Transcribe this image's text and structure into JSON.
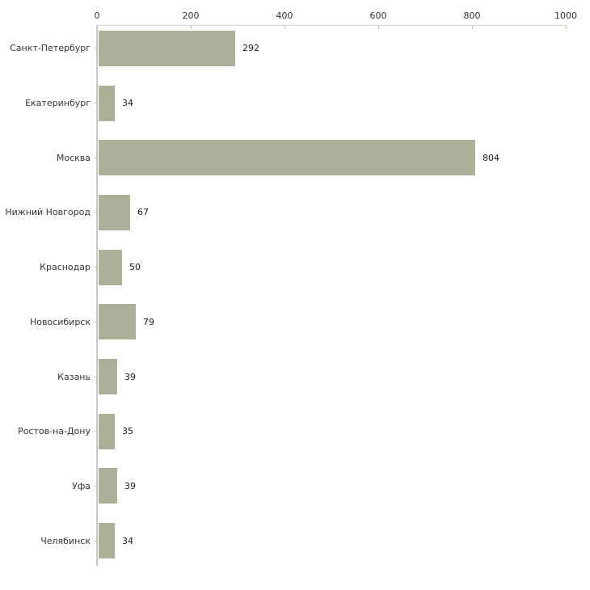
{
  "chart_data": {
    "type": "bar",
    "orientation": "horizontal",
    "title": "",
    "xlabel": "",
    "ylabel": "",
    "categories": [
      "Санкт-Петербург",
      "Екатеринбург",
      "Москва",
      "Нижний Новгород",
      "Краснодар",
      "Новосибирск",
      "Казань",
      "Ростов-на-Дону",
      "Уфа",
      "Челябинск"
    ],
    "values": [
      292,
      34,
      804,
      67,
      50,
      79,
      39,
      35,
      39,
      34
    ],
    "xlim": [
      0,
      1000
    ],
    "x_ticks": [
      0,
      200,
      400,
      600,
      800,
      1000
    ],
    "axis_position": "top",
    "grid": false,
    "legend": false,
    "bar_color": "#abb199",
    "x_axis_line_color": "#d9d9cd",
    "y_axis_line_color": "#c6c6c6",
    "tick_mark_color": "#c2c8a6",
    "category_label_color": "#333333",
    "value_label_color": "#1a1a1a",
    "background_color": "#ffffff"
  }
}
